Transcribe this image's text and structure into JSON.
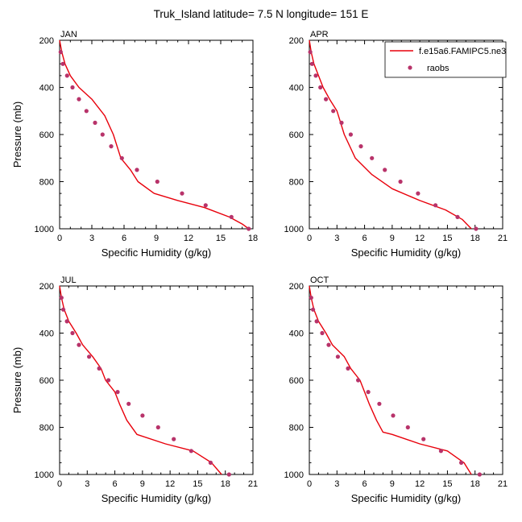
{
  "title": "Truk_Island  latitude= 7.5 N longitude= 151 E",
  "colors": {
    "model": "#e8000b",
    "obs": "#b8336a"
  },
  "legend": {
    "model_label": "f.e15a6.FAMIPC5.ne3",
    "obs_label": "raobs"
  },
  "chart_data": [
    {
      "type": "line",
      "title": "JAN",
      "xlabel": "Specific Humidity (g/kg)",
      "ylabel": "Pressure (mb)",
      "xlim": [
        0,
        18
      ],
      "xticks": [
        0,
        3,
        6,
        9,
        12,
        15,
        18
      ],
      "ylim": [
        1000,
        200
      ],
      "yticks": [
        200,
        400,
        600,
        800,
        1000
      ],
      "series": [
        {
          "name": "f.e15a6.FAMIPC5.ne3",
          "kind": "line",
          "x": [
            0.0,
            0.2,
            0.5,
            1.0,
            1.8,
            3.0,
            4.2,
            5.0,
            5.7,
            6.6,
            7.3,
            8.8,
            11.0,
            13.5,
            15.8,
            17.0,
            17.6
          ],
          "y": [
            200,
            250,
            300,
            350,
            400,
            450,
            520,
            600,
            700,
            750,
            800,
            850,
            880,
            910,
            950,
            980,
            1000
          ]
        },
        {
          "name": "raobs",
          "kind": "scatter",
          "x": [
            0.1,
            0.3,
            0.7,
            1.2,
            1.8,
            2.5,
            3.3,
            4.0,
            4.8,
            5.8,
            7.2,
            9.1,
            11.4,
            13.6,
            16.0,
            17.6
          ],
          "y": [
            250,
            300,
            350,
            400,
            450,
            500,
            550,
            600,
            650,
            700,
            750,
            800,
            850,
            900,
            950,
            1000
          ]
        }
      ]
    },
    {
      "type": "line",
      "title": "APR",
      "xlabel": "Specific Humidity (g/kg)",
      "ylabel": "Pressure (mb)",
      "xlim": [
        0,
        21
      ],
      "xticks": [
        0,
        3,
        6,
        9,
        12,
        15,
        18,
        21
      ],
      "ylim": [
        1000,
        200
      ],
      "yticks": [
        200,
        400,
        600,
        800,
        1000
      ],
      "legend": "top-right",
      "series": [
        {
          "name": "f.e15a6.FAMIPC5.ne3",
          "kind": "line",
          "x": [
            0.0,
            0.2,
            0.5,
            1.0,
            1.5,
            2.2,
            3.0,
            3.8,
            5.0,
            6.8,
            9.0,
            12.0,
            14.8,
            16.6,
            17.6
          ],
          "y": [
            200,
            250,
            300,
            350,
            400,
            450,
            500,
            600,
            700,
            770,
            830,
            880,
            920,
            960,
            1000
          ]
        },
        {
          "name": "raobs",
          "kind": "scatter",
          "x": [
            0.1,
            0.3,
            0.7,
            1.2,
            1.8,
            2.6,
            3.5,
            4.5,
            5.6,
            6.8,
            8.2,
            9.9,
            11.8,
            13.7,
            16.1,
            18.1
          ],
          "y": [
            250,
            300,
            350,
            400,
            450,
            500,
            550,
            600,
            650,
            700,
            750,
            800,
            850,
            900,
            950,
            1000
          ]
        }
      ]
    },
    {
      "type": "line",
      "title": "JUL",
      "xlabel": "Specific Humidity (g/kg)",
      "ylabel": "Pressure (mb)",
      "xlim": [
        0,
        21
      ],
      "xticks": [
        0,
        3,
        6,
        9,
        12,
        15,
        18,
        21
      ],
      "ylim": [
        1000,
        200
      ],
      "yticks": [
        200,
        400,
        600,
        800,
        1000
      ],
      "series": [
        {
          "name": "f.e15a6.FAMIPC5.ne3",
          "kind": "line",
          "x": [
            0.0,
            0.2,
            0.5,
            1.0,
            1.8,
            2.5,
            3.6,
            4.5,
            5.0,
            6.0,
            6.5,
            7.3,
            8.4,
            11.5,
            14.5,
            16.5,
            17.6
          ],
          "y": [
            200,
            250,
            300,
            350,
            400,
            450,
            500,
            550,
            600,
            650,
            700,
            770,
            830,
            870,
            900,
            950,
            1000
          ]
        },
        {
          "name": "raobs",
          "kind": "scatter",
          "x": [
            0.2,
            0.4,
            0.8,
            1.4,
            2.1,
            3.2,
            4.3,
            5.3,
            6.3,
            7.5,
            9.0,
            10.7,
            12.4,
            14.3,
            16.4,
            18.4
          ],
          "y": [
            250,
            300,
            350,
            400,
            450,
            500,
            550,
            600,
            650,
            700,
            750,
            800,
            850,
            900,
            950,
            1000
          ]
        }
      ]
    },
    {
      "type": "line",
      "title": "OCT",
      "xlabel": "Specific Humidity (g/kg)",
      "ylabel": "Pressure (mb)",
      "xlim": [
        0,
        21
      ],
      "xticks": [
        0,
        3,
        6,
        9,
        12,
        15,
        18,
        21
      ],
      "ylim": [
        1000,
        200
      ],
      "yticks": [
        200,
        400,
        600,
        800,
        1000
      ],
      "series": [
        {
          "name": "f.e15a6.FAMIPC5.ne3",
          "kind": "line",
          "x": [
            0.0,
            0.2,
            0.5,
            1.0,
            1.8,
            2.5,
            3.8,
            4.5,
            5.5,
            6.5,
            7.3,
            8.0,
            9.0,
            12.0,
            15.0,
            16.8,
            17.6
          ],
          "y": [
            200,
            250,
            300,
            350,
            400,
            450,
            500,
            550,
            600,
            700,
            770,
            820,
            830,
            870,
            900,
            950,
            1000
          ]
        },
        {
          "name": "raobs",
          "kind": "scatter",
          "x": [
            0.2,
            0.4,
            0.8,
            1.4,
            2.1,
            3.1,
            4.2,
            5.3,
            6.4,
            7.6,
            9.1,
            10.7,
            12.4,
            14.3,
            16.5,
            18.5
          ],
          "y": [
            250,
            300,
            350,
            400,
            450,
            500,
            550,
            600,
            650,
            700,
            750,
            800,
            850,
            900,
            950,
            1000
          ]
        }
      ]
    }
  ]
}
